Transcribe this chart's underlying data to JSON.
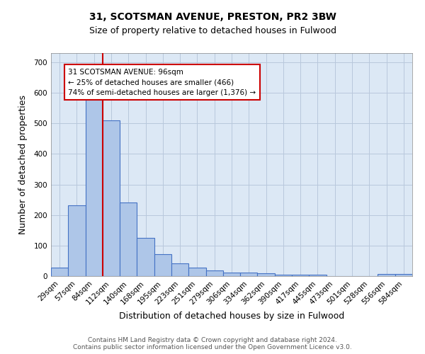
{
  "title1": "31, SCOTSMAN AVENUE, PRESTON, PR2 3BW",
  "title2": "Size of property relative to detached houses in Fulwood",
  "xlabel": "Distribution of detached houses by size in Fulwood",
  "ylabel": "Number of detached properties",
  "bar_labels": [
    "29sqm",
    "57sqm",
    "84sqm",
    "112sqm",
    "140sqm",
    "168sqm",
    "195sqm",
    "223sqm",
    "251sqm",
    "279sqm",
    "306sqm",
    "334sqm",
    "362sqm",
    "390sqm",
    "417sqm",
    "445sqm",
    "473sqm",
    "501sqm",
    "528sqm",
    "556sqm",
    "584sqm"
  ],
  "bar_values": [
    27,
    232,
    580,
    510,
    240,
    126,
    72,
    42,
    27,
    18,
    12,
    12,
    9,
    5,
    5,
    5,
    0,
    0,
    0,
    7,
    6
  ],
  "bar_color": "#aec6e8",
  "bar_edge_color": "#4472c4",
  "vline_x_index": 2,
  "vline_color": "#cc0000",
  "annotation_text": "31 SCOTSMAN AVENUE: 96sqm\n← 25% of detached houses are smaller (466)\n74% of semi-detached houses are larger (1,376) →",
  "annotation_box_color": "#ffffff",
  "annotation_box_edge": "#cc0000",
  "background_color": "#dce8f5",
  "footer_line1": "Contains HM Land Registry data © Crown copyright and database right 2024.",
  "footer_line2": "Contains public sector information licensed under the Open Government Licence v3.0.",
  "ylim": [
    0,
    730
  ],
  "yticks": [
    0,
    100,
    200,
    300,
    400,
    500,
    600,
    700
  ],
  "title1_fontsize": 10,
  "title2_fontsize": 9,
  "xlabel_fontsize": 9,
  "ylabel_fontsize": 9,
  "tick_fontsize": 7.5,
  "annotation_fontsize": 7.5,
  "footer_fontsize": 6.5
}
